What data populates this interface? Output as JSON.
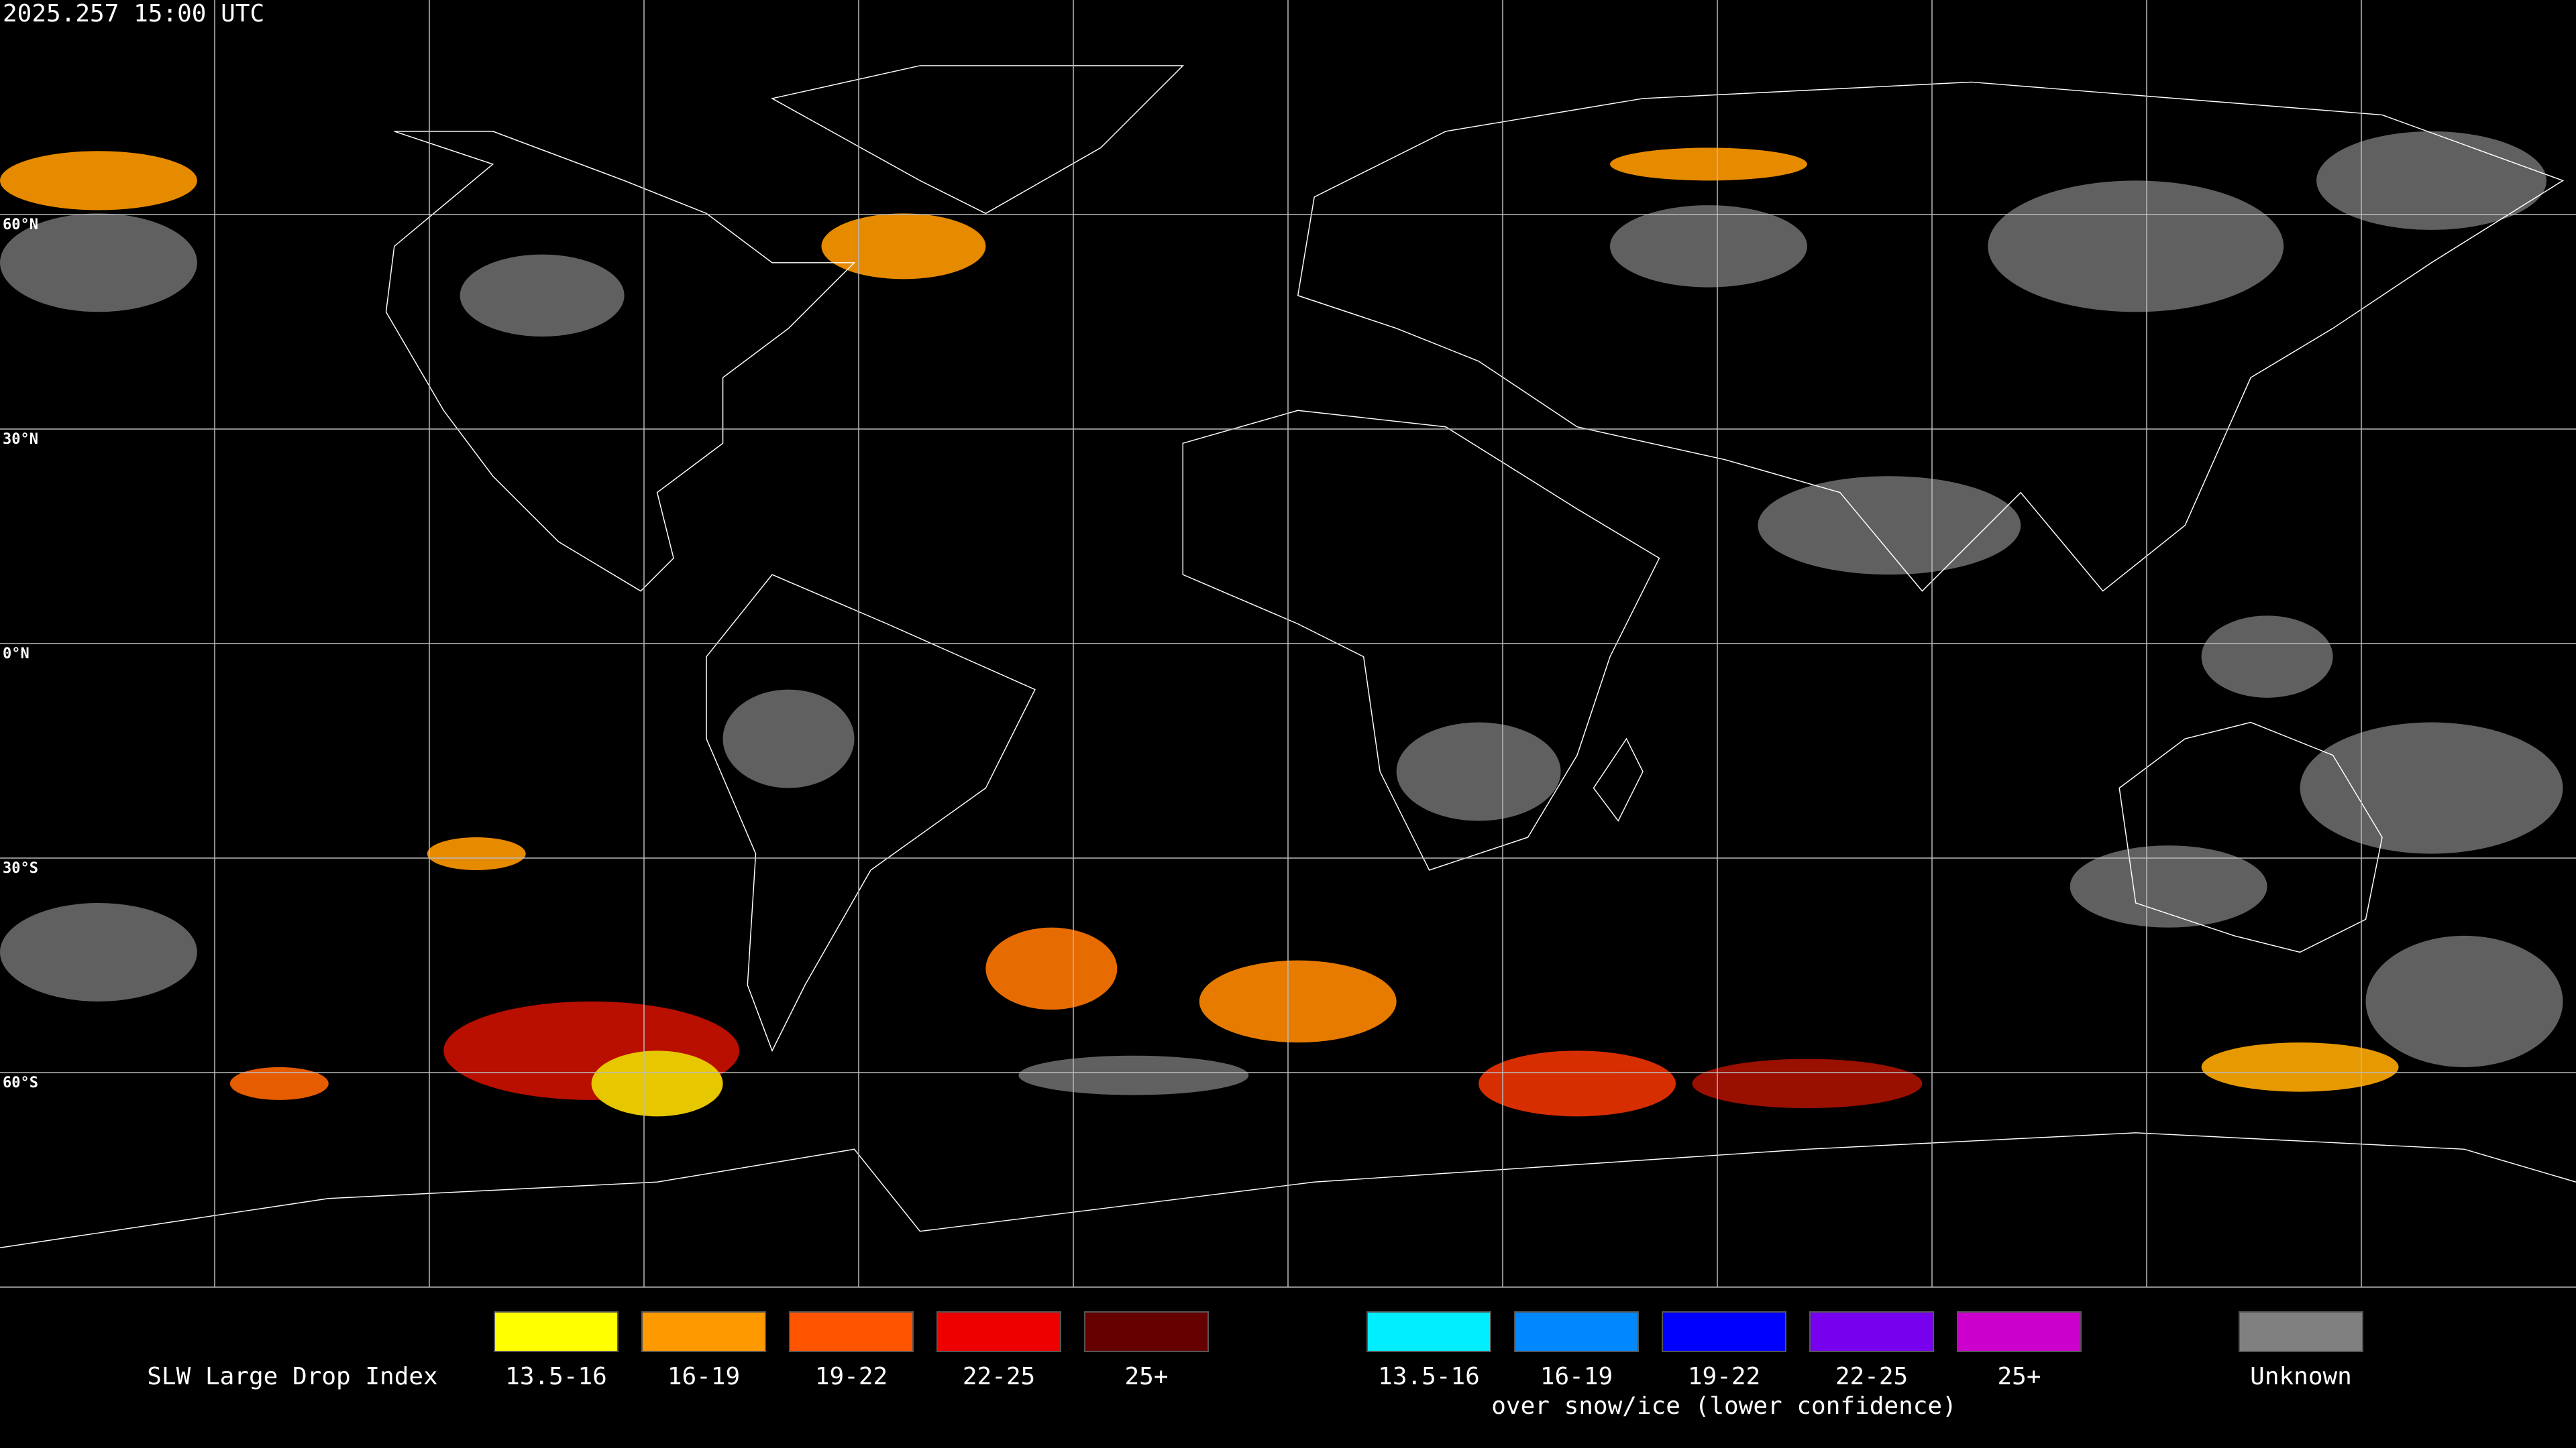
{
  "header": {
    "timestamp": "2025.257 15:00 UTC"
  },
  "map": {
    "latitude_labels": [
      "60°N",
      "30°N",
      "0°N",
      "30°S",
      "60°S"
    ]
  },
  "legend": {
    "title": "SLW Large Drop Index",
    "groups": [
      {
        "items": [
          {
            "label": "13.5-16",
            "color": "#ffff00"
          },
          {
            "label": "16-19",
            "color": "#ff9900"
          },
          {
            "label": "19-22",
            "color": "#ff5500"
          },
          {
            "label": "22-25",
            "color": "#ee0000"
          },
          {
            "label": "25+",
            "color": "#660000"
          }
        ]
      },
      {
        "items": [
          {
            "label": "13.5-16",
            "color": "#00eeff"
          },
          {
            "label": "16-19",
            "color": "#0088ff"
          },
          {
            "label": "19-22",
            "color": "#0000ff"
          },
          {
            "label": "22-25",
            "color": "#7700ee"
          },
          {
            "label": "25+",
            "color": "#cc00cc"
          }
        ],
        "caption": "over snow/ice (lower confidence)"
      },
      {
        "items": [
          {
            "label": "Unknown",
            "color": "#808080"
          }
        ]
      }
    ]
  }
}
